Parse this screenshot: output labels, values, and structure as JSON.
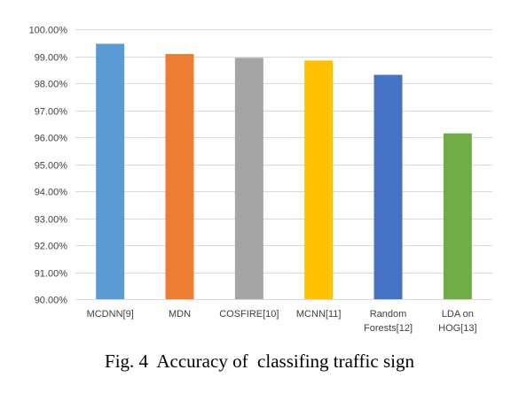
{
  "caption": "Fig. 4  Accuracy of  classifing traffic sign",
  "chart_data": {
    "type": "bar",
    "categories": [
      [
        "MCDNN[9]"
      ],
      [
        "MDN"
      ],
      [
        "COSFIRE[10]"
      ],
      [
        "MCNN[11]"
      ],
      [
        "Random",
        "Forests[12]"
      ],
      [
        "LDA on",
        "HOG[13]"
      ]
    ],
    "values": [
      99.46,
      99.08,
      98.94,
      98.84,
      98.31,
      96.14
    ],
    "value_format": "percent_2dp",
    "ylim": [
      90,
      100
    ],
    "yticks": [
      90,
      91,
      92,
      93,
      94,
      95,
      96,
      97,
      98,
      99,
      100
    ],
    "ytick_labels": [
      "90.00%",
      "91.00%",
      "92.00%",
      "93.00%",
      "94.00%",
      "95.00%",
      "96.00%",
      "97.00%",
      "98.00%",
      "99.00%",
      "100.00%"
    ],
    "grid": true,
    "legend": "none",
    "title": "",
    "xlabel": "",
    "ylabel": "",
    "colors": [
      "#5b9bd5",
      "#ed7d31",
      "#a5a5a5",
      "#ffc000",
      "#4472c4",
      "#70ad47"
    ],
    "grid_color": "#d9d9d9",
    "bar_names": [
      "bar-mcdnn",
      "bar-mdn",
      "bar-cosfire",
      "bar-mcnn",
      "bar-random-forests",
      "bar-lda-hog"
    ]
  }
}
